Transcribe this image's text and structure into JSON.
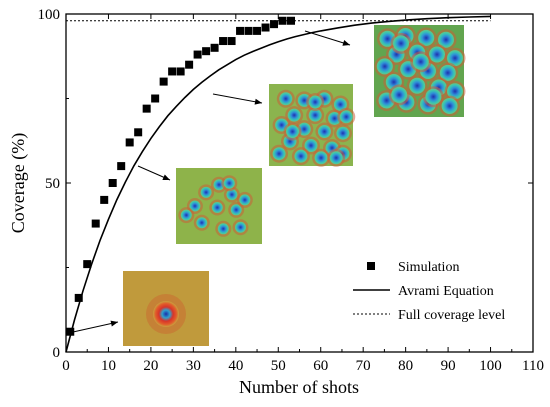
{
  "chart_data": {
    "type": "scatter",
    "xlabel": "Number of shots",
    "ylabel": "Coverage (%)",
    "xlim": [
      0,
      110
    ],
    "ylim": [
      0,
      100
    ],
    "x_ticks": [
      "0",
      "10",
      "20",
      "30",
      "40",
      "50",
      "60",
      "70",
      "80",
      "90",
      "100",
      "110"
    ],
    "y_ticks": [
      "0",
      "50",
      "100"
    ],
    "legend_position": "inside-lower-right",
    "grid": false,
    "series": [
      {
        "name": "Simulation",
        "marker": "square",
        "color": "#000000",
        "x": [
          1,
          3,
          5,
          7,
          9,
          11,
          13,
          15,
          17,
          19,
          21,
          23,
          25,
          27,
          29,
          31,
          33,
          35,
          37,
          39,
          41,
          43,
          45,
          47,
          49,
          51,
          53
        ],
        "y": [
          6,
          16,
          26,
          38,
          45,
          50,
          55,
          62,
          65,
          72,
          75,
          80,
          83,
          83,
          85,
          88,
          89,
          90,
          92,
          92,
          95,
          95,
          95,
          96,
          97,
          98,
          98
        ]
      },
      {
        "name": "Avrami Equation",
        "style": "solid-line",
        "color": "#000000",
        "x": [
          0,
          2,
          4,
          6,
          8,
          10,
          12,
          14,
          16,
          18,
          20,
          22,
          24,
          26,
          28,
          30,
          32,
          34,
          36,
          38,
          40,
          42,
          44,
          46,
          48,
          50,
          52,
          54,
          56,
          58,
          60,
          64,
          68,
          72,
          76,
          80,
          85,
          90,
          95,
          100
        ],
        "y": [
          0,
          9.5,
          18.1,
          25.9,
          33,
          39.3,
          45.1,
          50.3,
          55.1,
          59.3,
          63.2,
          66.7,
          69.9,
          72.7,
          75.3,
          77.7,
          79.8,
          81.7,
          83.5,
          85,
          86.5,
          87.8,
          88.9,
          89.9,
          90.9,
          91.8,
          92.6,
          93.3,
          93.9,
          94.5,
          95,
          95.9,
          96.7,
          97.3,
          97.8,
          98.2,
          98.6,
          98.9,
          99.1,
          99.3
        ]
      },
      {
        "name": "Full coverage level",
        "style": "dashed-line",
        "color": "#000000",
        "x": [
          0,
          100
        ],
        "y": [
          98,
          98
        ]
      }
    ]
  },
  "insets": [
    {
      "name": "inset-1-shot",
      "cx": [
        0.5
      ],
      "cy": [
        0.5
      ],
      "dots": 1
    },
    {
      "name": "inset-13-shots",
      "dots": 12
    },
    {
      "name": "inset-27-shots",
      "dots": 22
    },
    {
      "name": "inset-50-shots",
      "dots": 30
    }
  ]
}
